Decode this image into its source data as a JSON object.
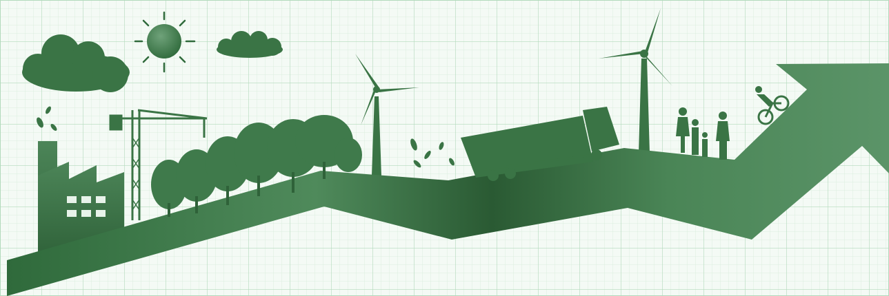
{
  "scene": {
    "description_elements": [
      "graph-paper-background",
      "green-growth-arrow",
      "factory",
      "crane",
      "trees",
      "wind-turbines",
      "truck",
      "family",
      "cyclist",
      "sun",
      "clouds",
      "falling-leaves"
    ],
    "colors": {
      "paper": "#f4faf5",
      "grid_minor": "#cfe8d4",
      "grid_major": "#a9d3b2",
      "arrow_dark": "#2b5e35",
      "arrow_mid": "#3f7a4b",
      "arrow_light": "#5a9266",
      "silhouette": "#3d7448"
    }
  }
}
